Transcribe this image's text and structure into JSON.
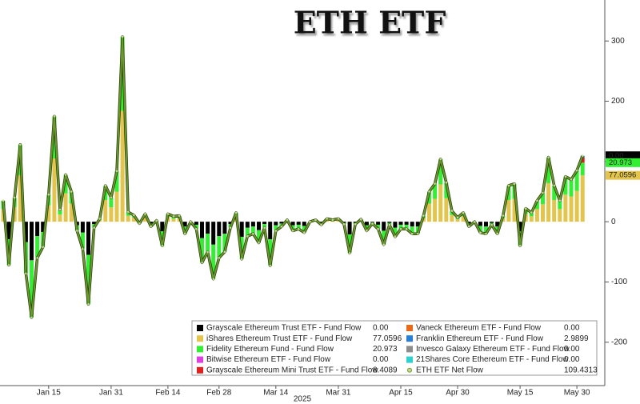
{
  "chart_data": {
    "type": "bar",
    "title": "ETH ETF",
    "xlabel": "2025",
    "categories": [
      null,
      null,
      null,
      null,
      null,
      null,
      null,
      null,
      "Jan 15",
      null,
      null,
      null,
      null,
      null,
      null,
      null,
      null,
      null,
      null,
      "Jan 31",
      null,
      null,
      null,
      null,
      null,
      null,
      null,
      null,
      null,
      "Feb 14",
      null,
      null,
      null,
      null,
      null,
      null,
      null,
      null,
      "Feb 28",
      null,
      null,
      null,
      null,
      null,
      null,
      null,
      null,
      null,
      "Mar 14",
      null,
      null,
      null,
      null,
      null,
      null,
      null,
      null,
      null,
      null,
      "Mar 31",
      null,
      null,
      null,
      null,
      null,
      null,
      null,
      null,
      null,
      null,
      "Apr 15",
      null,
      null,
      null,
      null,
      null,
      null,
      null,
      null,
      null,
      "Apr 30",
      null,
      null,
      null,
      null,
      null,
      null,
      null,
      null,
      null,
      null,
      "May 15",
      null,
      null,
      null,
      null,
      null,
      null,
      null,
      null,
      null,
      "May 30",
      null
    ],
    "ylim": [
      -272,
      368
    ],
    "yticks": [
      -200,
      -100,
      0,
      100,
      200,
      300
    ],
    "stacked": true,
    "series": [
      {
        "name": "Grayscale Ethereum Trust ETF - Fund Flow",
        "color": "#000000",
        "last_label": "0.00",
        "values": [
          0,
          -29,
          0,
          0,
          -34,
          -64,
          -24,
          -17,
          0,
          0,
          0,
          0,
          0,
          -6,
          -18,
          -55,
          -4,
          0,
          0,
          0,
          0,
          0,
          0,
          0,
          -1,
          0,
          -3,
          0,
          -16,
          0,
          0,
          0,
          -8,
          0,
          -5,
          -27,
          -20,
          -38,
          -24,
          -20,
          -4,
          0,
          -25,
          -10,
          -8,
          -14,
          -4,
          -29,
          -6,
          -3,
          0,
          -6,
          -5,
          -7,
          0,
          0,
          -2,
          0,
          0,
          0,
          -2,
          -21,
          -2,
          0,
          -6,
          -1,
          -5,
          -15,
          -2,
          -10,
          -5,
          -5,
          -8,
          -8,
          0,
          0,
          0,
          0,
          0,
          0,
          0,
          0,
          -3,
          0,
          -7,
          -8,
          -2,
          -8,
          0,
          0,
          0,
          -16,
          0,
          0,
          0,
          0,
          0,
          0,
          0,
          0,
          0,
          0,
          0
        ]
      },
      {
        "name": "iShares Ethereum Trust ETF - Fund Flow",
        "color": "#e3c44c",
        "last_label": "77.0596",
        "values": [
          21,
          0,
          24,
          77,
          0,
          0,
          0,
          0,
          27,
          105,
          12,
          47,
          30,
          0,
          0,
          0,
          0,
          3,
          36,
          24,
          50,
          184,
          10,
          7,
          0,
          8,
          0,
          1,
          0,
          8,
          5,
          6,
          0,
          0,
          0,
          0,
          0,
          0,
          0,
          0,
          0,
          9,
          0,
          0,
          0,
          0,
          0,
          0,
          0,
          0,
          2,
          0,
          0,
          0,
          0,
          2,
          0,
          3,
          2,
          3,
          0,
          0,
          0,
          2,
          0,
          0,
          0,
          0,
          0,
          0,
          0,
          0,
          0,
          0,
          6,
          30,
          38,
          62,
          39,
          11,
          4,
          9,
          0,
          0,
          0,
          0,
          0,
          0,
          6,
          36,
          38,
          0,
          13,
          9,
          21,
          29,
          64,
          36,
          21,
          45,
          42,
          51,
          77.0596
        ]
      },
      {
        "name": "Fidelity Ethereum Fund - Fund Flow",
        "color": "#33ee33",
        "last_label": "20.973",
        "values": [
          14,
          -43,
          16,
          51,
          -52,
          -95,
          -36,
          -25,
          18,
          70,
          8,
          31,
          20,
          -9,
          -27,
          -82,
          -6,
          2,
          24,
          16,
          34,
          123,
          6,
          4,
          -2,
          5,
          -5,
          1,
          -24,
          5,
          4,
          4,
          -12,
          0,
          -7,
          -41,
          -30,
          -57,
          -36,
          -30,
          -6,
          6,
          -37,
          -14,
          -12,
          -21,
          -6,
          -44,
          -9,
          -5,
          1,
          -9,
          -7,
          -11,
          0,
          1,
          -3,
          2,
          1,
          2,
          -2,
          -31,
          -2,
          2,
          -9,
          -2,
          -7,
          -23,
          -3,
          -15,
          -7,
          -7,
          -12,
          -12,
          4,
          20,
          25,
          42,
          26,
          7,
          3,
          6,
          -5,
          0,
          -11,
          -12,
          -3,
          -12,
          4,
          24,
          25,
          -24,
          9,
          6,
          14,
          19,
          43,
          24,
          14,
          30,
          28,
          34,
          20.973
        ]
      },
      {
        "name": "Bitwise Ethereum ETF - Fund Flow",
        "color": "#e040e0",
        "last_label": "0.00",
        "values": [
          0,
          0,
          0,
          0,
          0,
          0,
          0,
          0,
          0,
          0,
          0,
          0,
          0,
          0,
          0,
          0,
          0,
          0,
          0,
          0,
          0,
          0,
          0,
          0,
          0,
          0,
          0,
          0,
          0,
          0,
          0,
          0,
          0,
          0,
          0,
          0,
          0,
          0,
          0,
          0,
          0,
          0,
          0,
          0,
          0,
          0,
          0,
          0,
          0,
          0,
          0,
          0,
          0,
          0,
          0,
          0,
          0,
          0,
          0,
          0,
          0,
          0,
          0,
          0,
          0,
          0,
          0,
          0,
          0,
          0,
          0,
          0,
          0,
          0,
          0,
          0,
          0,
          0,
          0,
          0,
          0,
          0,
          0,
          0,
          0,
          0,
          0,
          0,
          0,
          0,
          0,
          0,
          0,
          0,
          0,
          0,
          0,
          0,
          0,
          0,
          0,
          0,
          0
        ]
      },
      {
        "name": "Grayscale Ethereum Mini Trust ETF - Fund Flow",
        "color": "#e02020",
        "last_label": "8.4089",
        "values": [
          0,
          0,
          0,
          0,
          0,
          0,
          0,
          0,
          0,
          0,
          0,
          0,
          0,
          0,
          0,
          0,
          0,
          0,
          0,
          0,
          0,
          0,
          0,
          0,
          0,
          0,
          0,
          0,
          0,
          0,
          0,
          0,
          0,
          0,
          0,
          0,
          0,
          0,
          0,
          0,
          0,
          0,
          0,
          0,
          0,
          0,
          0,
          0,
          0,
          0,
          0,
          0,
          0,
          0,
          0,
          0,
          0,
          0,
          0,
          0,
          0,
          0,
          0,
          0,
          0,
          0,
          0,
          0,
          0,
          0,
          0,
          0,
          0,
          0,
          0,
          0,
          0,
          0,
          0,
          0,
          0,
          0,
          0,
          0,
          0,
          0,
          0,
          0,
          0,
          0,
          0,
          0,
          0,
          0,
          0,
          0,
          0,
          0,
          0,
          0,
          0,
          0,
          8.4089
        ]
      },
      {
        "name": "Vaneck Ethereum ETF - Fund Flow",
        "color": "#e86a1a",
        "last_label": "0.00",
        "values": [
          0,
          0,
          0,
          0,
          0,
          0,
          0,
          0,
          0,
          0,
          0,
          0,
          0,
          0,
          0,
          0,
          0,
          0,
          0,
          0,
          0,
          0,
          0,
          0,
          0,
          0,
          0,
          0,
          0,
          0,
          0,
          0,
          0,
          0,
          0,
          0,
          0,
          0,
          0,
          0,
          0,
          0,
          0,
          0,
          0,
          0,
          0,
          0,
          0,
          0,
          0,
          0,
          0,
          0,
          0,
          0,
          0,
          0,
          0,
          0,
          0,
          0,
          0,
          0,
          0,
          0,
          0,
          0,
          0,
          0,
          0,
          0,
          0,
          0,
          0,
          0,
          0,
          0,
          0,
          0,
          0,
          0,
          0,
          0,
          0,
          0,
          0,
          0,
          0,
          0,
          0,
          0,
          0,
          0,
          0,
          0,
          0,
          0,
          0,
          0,
          0,
          0,
          0
        ]
      },
      {
        "name": "Franklin Ethereum ETF - Fund Flow",
        "color": "#2a7fd4",
        "last_label": "2.9899",
        "values": [
          0,
          0,
          0,
          0,
          0,
          0,
          0,
          0,
          0,
          0,
          0,
          0,
          0,
          0,
          0,
          0,
          0,
          0,
          0,
          0,
          0,
          0,
          0,
          0,
          0,
          0,
          0,
          0,
          0,
          0,
          0,
          0,
          0,
          0,
          0,
          0,
          0,
          0,
          0,
          0,
          0,
          0,
          0,
          0,
          0,
          0,
          0,
          0,
          0,
          0,
          0,
          0,
          0,
          0,
          0,
          0,
          0,
          0,
          0,
          0,
          0,
          0,
          0,
          0,
          0,
          0,
          0,
          0,
          0,
          0,
          0,
          0,
          0,
          0,
          0,
          0,
          0,
          0,
          0,
          0,
          0,
          0,
          0,
          0,
          0,
          0,
          0,
          0,
          0,
          0,
          0,
          0,
          0,
          0,
          0,
          0,
          0,
          0,
          0,
          0,
          0,
          0,
          2.9899
        ]
      },
      {
        "name": "Invesco Galaxy Ethereum ETF - Fund Flow",
        "color": "#8c8c8c",
        "last_label": "0.00",
        "values": [
          0,
          0,
          0,
          0,
          0,
          0,
          0,
          0,
          0,
          0,
          0,
          0,
          0,
          0,
          0,
          0,
          0,
          0,
          0,
          0,
          0,
          0,
          0,
          0,
          0,
          0,
          0,
          0,
          0,
          0,
          0,
          0,
          0,
          0,
          0,
          0,
          0,
          0,
          0,
          0,
          0,
          0,
          0,
          0,
          0,
          0,
          0,
          0,
          0,
          0,
          0,
          0,
          0,
          0,
          0,
          0,
          0,
          0,
          0,
          0,
          0,
          0,
          0,
          0,
          0,
          0,
          0,
          0,
          0,
          0,
          0,
          0,
          0,
          0,
          0,
          0,
          0,
          0,
          0,
          0,
          0,
          0,
          0,
          0,
          0,
          0,
          0,
          0,
          0,
          0,
          0,
          0,
          0,
          0,
          0,
          0,
          0,
          0,
          0,
          0,
          0,
          0,
          0
        ]
      },
      {
        "name": "21Shares Core Ethereum ETF - Fund Flow",
        "color": "#30d0d0",
        "last_label": "0.00",
        "values": [
          0,
          0,
          0,
          0,
          0,
          0,
          0,
          0,
          0,
          0,
          0,
          0,
          0,
          0,
          0,
          0,
          0,
          0,
          0,
          0,
          0,
          0,
          0,
          0,
          0,
          0,
          0,
          0,
          0,
          0,
          0,
          0,
          0,
          0,
          0,
          0,
          0,
          0,
          0,
          0,
          0,
          0,
          0,
          0,
          0,
          0,
          0,
          0,
          0,
          0,
          0,
          0,
          0,
          0,
          0,
          0,
          0,
          0,
          0,
          0,
          0,
          0,
          0,
          0,
          0,
          0,
          0,
          0,
          0,
          0,
          0,
          0,
          0,
          0,
          0,
          0,
          0,
          0,
          0,
          0,
          0,
          0,
          0,
          0,
          0,
          0,
          0,
          0,
          0,
          0,
          0,
          0,
          0,
          0,
          0,
          0,
          0,
          0,
          0,
          0,
          0,
          0,
          0
        ]
      },
      {
        "name": "ETH ETF Net Flow",
        "type": "line",
        "color": "#6a9a2a",
        "last_label": "109.4313",
        "values": [
          35,
          -72,
          40,
          128,
          -86,
          -159,
          -60,
          -42,
          45,
          175,
          20,
          78,
          50,
          -15,
          -45,
          -137,
          -10,
          5,
          60,
          40,
          84,
          307,
          16,
          11,
          -3,
          13,
          -8,
          2,
          -40,
          13,
          9,
          10,
          -20,
          0,
          -12,
          -68,
          -50,
          -95,
          -60,
          -50,
          -10,
          15,
          -62,
          -24,
          -20,
          -35,
          -10,
          -73,
          -15,
          -8,
          3,
          -15,
          -12,
          -18,
          0,
          3,
          -5,
          5,
          3,
          5,
          -4,
          -52,
          -4,
          4,
          -15,
          -3,
          -12,
          -38,
          -5,
          -25,
          -12,
          -12,
          -20,
          -20,
          10,
          50,
          63,
          104,
          65,
          18,
          7,
          15,
          -8,
          0,
          -18,
          -20,
          -5,
          -20,
          10,
          60,
          63,
          -40,
          22,
          15,
          35,
          48,
          107,
          60,
          35,
          75,
          70,
          85,
          109.4313
        ]
      }
    ]
  }
}
